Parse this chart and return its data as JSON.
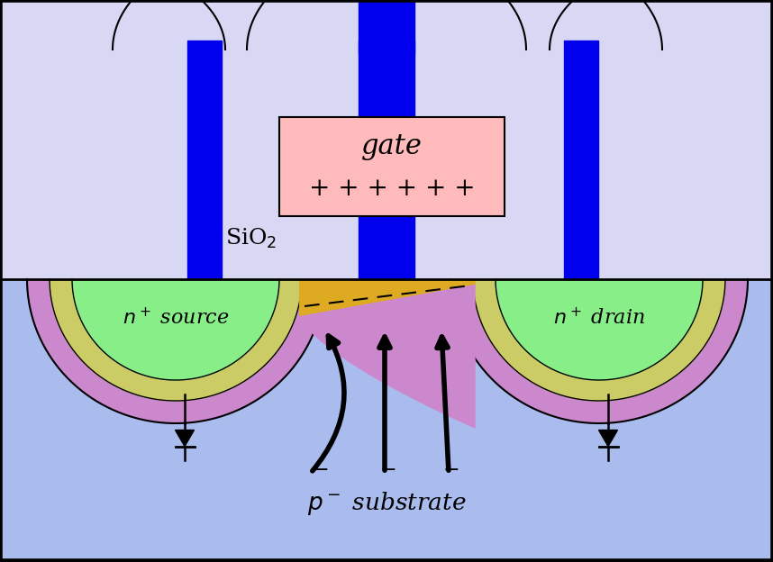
{
  "bg_color": "#000000",
  "substrate_color": "#aabbee",
  "oxide_color": "#d8d8f5",
  "gate_poly_color": "#0000ee",
  "gate_box_color": "#ffbbbb",
  "n_green": "#88ee88",
  "n_yellow_ring": "#cccc66",
  "p_depletion_purple": "#cc88cc",
  "channel_yellow": "#ddaa22",
  "sio2_text": "SiO$_2$",
  "gate_text": "gate",
  "gate_charges": "+ + + + + +",
  "source_text": "$n^+$ source",
  "drain_text": "$n^+$ drain",
  "substrate_text": "$p^-$ substrate"
}
